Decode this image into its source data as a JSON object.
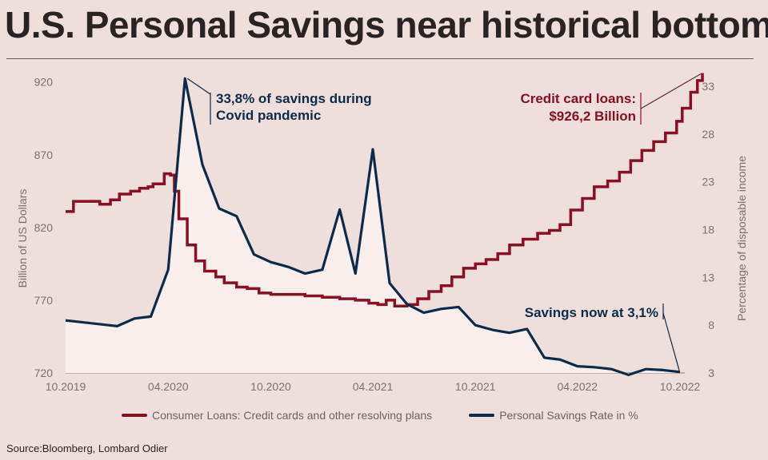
{
  "title": "U.S. Personal Savings near historical bottom",
  "source": "Source:Bloomberg, Lombard Odier",
  "colors": {
    "loans": "#8a0e24",
    "savings": "#0d2b48",
    "background": "#eedfdc",
    "fill": "#f8efec"
  },
  "chart_data": {
    "type": "line",
    "x_ticks": [
      "10.2019",
      "04.2020",
      "10.2020",
      "04.2021",
      "10.2021",
      "04.2022",
      "10.2022"
    ],
    "x_range": [
      "2019-10",
      "2022-10"
    ],
    "y_left": {
      "label": "Billion of US Dollars",
      "ticks": [
        720,
        770,
        820,
        870,
        920
      ],
      "range": [
        720,
        927
      ]
    },
    "y_right": {
      "label": "Percentage of disposable income",
      "ticks": [
        3,
        8,
        13,
        18,
        23,
        28,
        33
      ],
      "range": [
        3,
        34.5
      ]
    },
    "series": [
      {
        "name": "Consumer Loans: Credit cards and other resolving plans",
        "axis": "left",
        "step": true,
        "x": [
          "2019-10-01",
          "2019-10-15",
          "2019-11-01",
          "2019-12-01",
          "2019-12-20",
          "2020-01-05",
          "2020-01-25",
          "2020-02-10",
          "2020-02-25",
          "2020-03-05",
          "2020-03-25",
          "2020-04-05",
          "2020-04-12",
          "2020-04-20",
          "2020-05-05",
          "2020-05-20",
          "2020-06-05",
          "2020-06-25",
          "2020-07-10",
          "2020-08-01",
          "2020-08-20",
          "2020-09-10",
          "2020-10-01",
          "2020-11-01",
          "2020-12-01",
          "2021-01-01",
          "2021-02-01",
          "2021-03-01",
          "2021-03-25",
          "2021-04-10",
          "2021-04-25",
          "2021-05-10",
          "2021-06-01",
          "2021-06-20",
          "2021-07-10",
          "2021-08-01",
          "2021-08-20",
          "2021-09-10",
          "2021-10-01",
          "2021-10-20",
          "2021-11-10",
          "2021-12-01",
          "2021-12-25",
          "2022-01-20",
          "2022-02-10",
          "2022-03-01",
          "2022-03-20",
          "2022-04-10",
          "2022-05-01",
          "2022-05-25",
          "2022-06-15",
          "2022-07-05",
          "2022-07-25",
          "2022-08-15",
          "2022-09-05",
          "2022-09-25",
          "2022-10-05",
          "2022-10-20",
          "2022-11-01",
          "2022-11-10"
        ],
        "values": [
          831,
          838,
          838,
          836,
          839,
          843,
          845,
          847,
          848,
          850,
          857,
          856,
          845,
          826,
          808,
          797,
          790,
          786,
          782,
          779,
          778,
          775,
          774,
          774,
          773,
          772,
          771,
          770,
          768,
          767,
          770,
          766,
          767,
          771,
          776,
          780,
          786,
          792,
          795,
          798,
          802,
          808,
          812,
          816,
          818,
          822,
          832,
          840,
          848,
          852,
          858,
          866,
          873,
          879,
          885,
          893,
          902,
          913,
          921,
          926.2
        ]
      },
      {
        "name": "Personal Savings Rate in %",
        "axis": "right",
        "step": false,
        "x": [
          "2019-10-01",
          "2020-01-01",
          "2020-02-01",
          "2020-03-01",
          "2020-04-01",
          "2020-05-01",
          "2020-06-01",
          "2020-07-01",
          "2020-08-01",
          "2020-09-01",
          "2020-10-01",
          "2020-11-01",
          "2020-12-01",
          "2021-01-01",
          "2021-02-01",
          "2021-03-01",
          "2021-04-01",
          "2021-05-01",
          "2021-06-01",
          "2021-07-01",
          "2021-08-01",
          "2021-09-01",
          "2021-10-01",
          "2021-11-01",
          "2021-12-01",
          "2022-01-01",
          "2022-02-01",
          "2022-03-01",
          "2022-04-01",
          "2022-05-01",
          "2022-06-01",
          "2022-07-01",
          "2022-08-01",
          "2022-09-01",
          "2022-10-01"
        ],
        "values": [
          8.5,
          7.9,
          8.7,
          8.9,
          13.8,
          33.8,
          24.8,
          20.2,
          19.4,
          15.4,
          14.6,
          14.1,
          13.4,
          13.8,
          20.1,
          13.4,
          26.4,
          12.4,
          10.2,
          9.3,
          9.7,
          9.9,
          8.0,
          7.5,
          7.2,
          7.6,
          4.6,
          4.4,
          3.7,
          3.6,
          3.4,
          2.8,
          3.4,
          3.3,
          3.1
        ]
      }
    ],
    "annotations": [
      {
        "text": [
          "33,8% of savings during",
          "Covid pandemic"
        ],
        "series": "Personal Savings Rate in %",
        "x": "2020-05-01",
        "y": 33.8
      },
      {
        "text": [
          "Credit card loans:",
          "$926,2 Billion"
        ],
        "series": "Consumer Loans: Credit cards and other resolving plans",
        "x": "2022-11-10",
        "y": 926.2
      },
      {
        "text": [
          "Savings now at 3,1%"
        ],
        "series": "Personal Savings Rate in %",
        "x": "2022-10-01",
        "y": 3.1
      }
    ],
    "legend_position": "bottom",
    "grid": false
  }
}
